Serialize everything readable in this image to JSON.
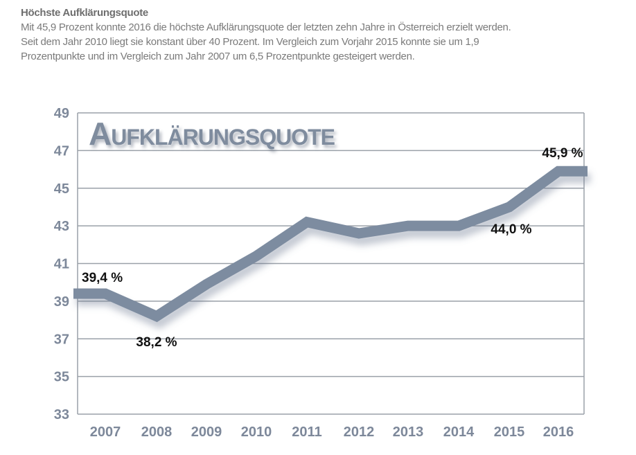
{
  "intro": {
    "heading": "Höchste Aufklärungsquote",
    "lines": [
      "Mit 45,9 Prozent konnte 2016 die höchste Aufklärungsquote der letzten zehn Jahre in Österreich erzielt werden.",
      "Seit dem Jahr 2010 liegt sie konstant über 40 Prozent. Im Vergleich zum Vorjahr 2015 konnte sie um 1,9",
      "Prozentpunkte und im Vergleich zum Jahr 2007 um 6,5 Prozentpunkte gesteigert werden."
    ]
  },
  "chart_data": {
    "type": "line",
    "title": "Aufklärungsquote",
    "xlabel": "",
    "ylabel": "",
    "categories": [
      "2007",
      "2008",
      "2009",
      "2010",
      "2011",
      "2012",
      "2013",
      "2014",
      "2015",
      "2016"
    ],
    "values": [
      39.4,
      38.2,
      39.9,
      41.4,
      43.2,
      42.6,
      43.0,
      43.0,
      44.0,
      45.9
    ],
    "ylim": [
      33,
      49
    ],
    "yticks": [
      "33",
      "35",
      "37",
      "39",
      "41",
      "43",
      "45",
      "47",
      "49"
    ],
    "grid": true,
    "data_labels": [
      {
        "index": 0,
        "text": "39,4 %"
      },
      {
        "index": 1,
        "text": "38,2 %"
      },
      {
        "index": 8,
        "text": "44,0 %"
      },
      {
        "index": 9,
        "text": "45,9 %"
      }
    ],
    "colors": {
      "line": "#7d8ca0",
      "grid": "#9aa0a8",
      "tick": "#7d889a"
    }
  }
}
